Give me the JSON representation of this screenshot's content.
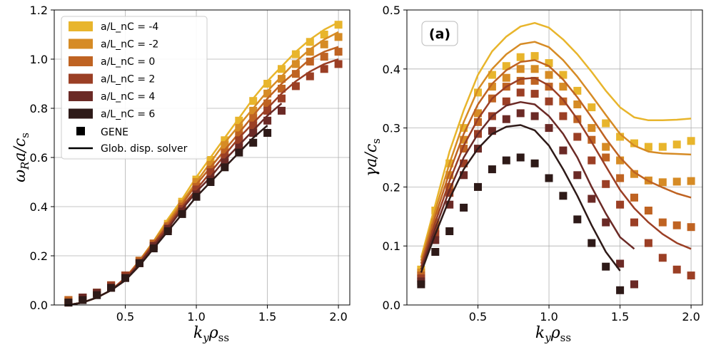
{
  "colors": [
    "#e8b52c",
    "#d68b25",
    "#bf6322",
    "#9b3f25",
    "#6b2a26",
    "#2e1a18"
  ],
  "chart_data": [
    {
      "type": "line",
      "title": "",
      "xlabel": "k_y ρ_ss",
      "ylabel": "ω_R a / c_s",
      "xlim": [
        0.0,
        2.08
      ],
      "ylim": [
        0.0,
        1.2
      ],
      "xticks": [
        "0.5",
        "1.0",
        "1.5",
        "2.0"
      ],
      "yticks": [
        "0.0",
        "0.2",
        "0.4",
        "0.6",
        "0.8",
        "1.0",
        "1.2"
      ],
      "grid": true,
      "legend_position": "top-left",
      "legend": {
        "series": [
          "a/L_nC = -4",
          "a/L_nC = -2",
          "a/L_nC = 0",
          "a/L_nC = 2",
          "a/L_nC = 4",
          "a/L_nC = 6"
        ],
        "gene": "GENE",
        "solver": "Glob. disp. solver"
      },
      "series": [
        {
          "name": "a/L_nC = -4",
          "line_x": [
            0.1,
            0.2,
            0.3,
            0.4,
            0.5,
            0.6,
            0.7,
            0.8,
            0.9,
            1.0,
            1.1,
            1.2,
            1.3,
            1.4,
            1.5,
            1.6,
            1.7,
            1.8,
            1.9,
            2.0
          ],
          "line_y": [
            0.0,
            0.01,
            0.03,
            0.06,
            0.11,
            0.18,
            0.26,
            0.35,
            0.43,
            0.52,
            0.6,
            0.68,
            0.76,
            0.84,
            0.91,
            0.97,
            1.03,
            1.08,
            1.12,
            1.15
          ],
          "gene_x": [
            0.1,
            0.2,
            0.3,
            0.4,
            0.5,
            0.6,
            0.7,
            0.8,
            0.9,
            1.0,
            1.1,
            1.2,
            1.3,
            1.4,
            1.5,
            1.6,
            1.7,
            1.8,
            1.9,
            2.0
          ],
          "gene_y": [
            0.02,
            0.03,
            0.05,
            0.08,
            0.12,
            0.18,
            0.25,
            0.33,
            0.42,
            0.51,
            0.59,
            0.67,
            0.75,
            0.83,
            0.9,
            0.96,
            1.02,
            1.07,
            1.1,
            1.14
          ]
        },
        {
          "name": "a/L_nC = -2",
          "line_x": [
            0.1,
            0.2,
            0.3,
            0.4,
            0.5,
            0.6,
            0.7,
            0.8,
            0.9,
            1.0,
            1.1,
            1.2,
            1.3,
            1.4,
            1.5,
            1.6,
            1.7,
            1.8,
            1.9,
            2.0
          ],
          "line_y": [
            0.0,
            0.01,
            0.03,
            0.06,
            0.11,
            0.18,
            0.26,
            0.34,
            0.42,
            0.5,
            0.58,
            0.66,
            0.73,
            0.8,
            0.87,
            0.93,
            0.99,
            1.04,
            1.08,
            1.11
          ],
          "gene_x": [
            0.1,
            0.2,
            0.3,
            0.4,
            0.5,
            0.6,
            0.7,
            0.8,
            0.9,
            1.0,
            1.1,
            1.2,
            1.3,
            1.4,
            1.5,
            1.6,
            1.7,
            1.8,
            1.9,
            2.0
          ],
          "gene_y": [
            0.02,
            0.03,
            0.05,
            0.08,
            0.12,
            0.18,
            0.25,
            0.32,
            0.41,
            0.5,
            0.57,
            0.65,
            0.72,
            0.79,
            0.86,
            0.92,
            0.98,
            1.03,
            1.06,
            1.09
          ]
        },
        {
          "name": "a/L_nC = 0",
          "line_x": [
            0.1,
            0.2,
            0.3,
            0.4,
            0.5,
            0.6,
            0.7,
            0.8,
            0.9,
            1.0,
            1.1,
            1.2,
            1.3,
            1.4,
            1.5,
            1.6,
            1.7,
            1.8,
            1.9,
            2.0
          ],
          "line_y": [
            0.0,
            0.01,
            0.03,
            0.06,
            0.11,
            0.18,
            0.25,
            0.33,
            0.41,
            0.49,
            0.56,
            0.63,
            0.7,
            0.77,
            0.84,
            0.9,
            0.95,
            1.0,
            1.03,
            1.05
          ],
          "gene_x": [
            0.1,
            0.2,
            0.3,
            0.4,
            0.5,
            0.6,
            0.7,
            0.8,
            0.9,
            1.0,
            1.1,
            1.2,
            1.3,
            1.4,
            1.5,
            1.6,
            1.7,
            1.8,
            1.9,
            2.0
          ],
          "gene_y": [
            0.02,
            0.03,
            0.05,
            0.08,
            0.12,
            0.18,
            0.25,
            0.32,
            0.4,
            0.48,
            0.55,
            0.62,
            0.69,
            0.76,
            0.82,
            0.88,
            0.94,
            0.99,
            1.01,
            1.03
          ]
        },
        {
          "name": "a/L_nC = 2",
          "line_x": [
            0.1,
            0.2,
            0.3,
            0.4,
            0.5,
            0.6,
            0.7,
            0.8,
            0.9,
            1.0,
            1.1,
            1.2,
            1.3,
            1.4,
            1.5,
            1.6,
            1.7,
            1.8,
            1.9,
            2.0
          ],
          "line_y": [
            0.0,
            0.01,
            0.03,
            0.06,
            0.11,
            0.17,
            0.25,
            0.32,
            0.4,
            0.47,
            0.54,
            0.61,
            0.68,
            0.74,
            0.8,
            0.86,
            0.91,
            0.95,
            0.98,
            1.0
          ],
          "gene_x": [
            0.1,
            0.2,
            0.3,
            0.4,
            0.5,
            0.6,
            0.7,
            0.8,
            0.9,
            1.0,
            1.1,
            1.2,
            1.3,
            1.4,
            1.5,
            1.6,
            1.7,
            1.8,
            1.9,
            2.0
          ],
          "gene_y": [
            0.01,
            0.03,
            0.05,
            0.08,
            0.12,
            0.17,
            0.24,
            0.31,
            0.39,
            0.47,
            0.54,
            0.6,
            0.67,
            0.73,
            0.79,
            0.84,
            0.89,
            0.93,
            0.96,
            0.98
          ]
        },
        {
          "name": "a/L_nC = 4",
          "line_x": [
            0.1,
            0.2,
            0.3,
            0.4,
            0.5,
            0.6,
            0.7,
            0.8,
            0.9,
            1.0,
            1.1,
            1.2,
            1.3,
            1.4,
            1.5,
            1.6
          ],
          "line_y": [
            0.0,
            0.01,
            0.03,
            0.06,
            0.1,
            0.17,
            0.24,
            0.31,
            0.39,
            0.46,
            0.52,
            0.59,
            0.65,
            0.71,
            0.77,
            0.82
          ],
          "gene_x": [
            0.1,
            0.2,
            0.3,
            0.4,
            0.5,
            0.6,
            0.7,
            0.8,
            0.9,
            1.0,
            1.1,
            1.2,
            1.3,
            1.4,
            1.5,
            1.6
          ],
          "gene_y": [
            0.01,
            0.03,
            0.05,
            0.07,
            0.11,
            0.17,
            0.24,
            0.31,
            0.38,
            0.45,
            0.51,
            0.58,
            0.64,
            0.7,
            0.75,
            0.79
          ]
        },
        {
          "name": "a/L_nC = 6",
          "line_x": [
            0.1,
            0.2,
            0.3,
            0.4,
            0.5,
            0.6,
            0.7,
            0.8,
            0.9,
            1.0,
            1.1,
            1.2,
            1.3,
            1.4,
            1.5
          ],
          "line_y": [
            0.0,
            0.01,
            0.03,
            0.06,
            0.1,
            0.16,
            0.23,
            0.3,
            0.37,
            0.44,
            0.5,
            0.56,
            0.62,
            0.68,
            0.73
          ],
          "gene_x": [
            0.1,
            0.2,
            0.3,
            0.4,
            0.5,
            0.6,
            0.7,
            0.8,
            0.9,
            1.0,
            1.1,
            1.2,
            1.3,
            1.4,
            1.5
          ],
          "gene_y": [
            0.01,
            0.02,
            0.04,
            0.07,
            0.11,
            0.17,
            0.23,
            0.3,
            0.37,
            0.44,
            0.5,
            0.56,
            0.62,
            0.66,
            0.7
          ]
        }
      ]
    },
    {
      "type": "line",
      "title": "",
      "annotation": "(a)",
      "xlabel": "k_y ρ_ss",
      "ylabel": "γ a / c_s",
      "xlim": [
        0.0,
        2.08
      ],
      "ylim": [
        0.0,
        0.5
      ],
      "xticks": [
        "0.5",
        "1.0",
        "1.5",
        "2.0"
      ],
      "yticks": [
        "0.0",
        "0.1",
        "0.2",
        "0.3",
        "0.4",
        "0.5"
      ],
      "grid": true,
      "series": [
        {
          "name": "a/L_nC = -4",
          "line_x": [
            0.1,
            0.2,
            0.3,
            0.4,
            0.5,
            0.6,
            0.7,
            0.8,
            0.9,
            1.0,
            1.1,
            1.2,
            1.3,
            1.4,
            1.5,
            1.6,
            1.7,
            1.8,
            1.9,
            2.0
          ],
          "line_y": [
            0.08,
            0.17,
            0.26,
            0.33,
            0.39,
            0.43,
            0.455,
            0.472,
            0.478,
            0.47,
            0.45,
            0.425,
            0.395,
            0.363,
            0.335,
            0.318,
            0.313,
            0.313,
            0.314,
            0.316
          ],
          "gene_x": [
            0.1,
            0.2,
            0.3,
            0.4,
            0.5,
            0.6,
            0.7,
            0.8,
            0.9,
            1.0,
            1.1,
            1.2,
            1.3,
            1.4,
            1.5,
            1.6,
            1.7,
            1.8,
            1.9,
            2.0
          ],
          "gene_y": [
            0.06,
            0.16,
            0.24,
            0.3,
            0.36,
            0.39,
            0.405,
            0.42,
            0.422,
            0.41,
            0.39,
            0.363,
            0.335,
            0.308,
            0.285,
            0.274,
            0.268,
            0.268,
            0.272,
            0.278
          ]
        },
        {
          "name": "a/L_nC = -2",
          "line_x": [
            0.1,
            0.2,
            0.3,
            0.4,
            0.5,
            0.6,
            0.7,
            0.8,
            0.9,
            1.0,
            1.1,
            1.2,
            1.3,
            1.4,
            1.5,
            1.6,
            1.7,
            1.8,
            1.9,
            2.0
          ],
          "line_y": [
            0.075,
            0.16,
            0.24,
            0.31,
            0.365,
            0.4,
            0.425,
            0.442,
            0.446,
            0.437,
            0.415,
            0.387,
            0.355,
            0.322,
            0.29,
            0.27,
            0.26,
            0.257,
            0.256,
            0.255
          ],
          "gene_x": [
            0.1,
            0.2,
            0.3,
            0.4,
            0.5,
            0.6,
            0.7,
            0.8,
            0.9,
            1.0,
            1.1,
            1.2,
            1.3,
            1.4,
            1.5,
            1.6,
            1.7,
            1.8,
            1.9,
            2.0
          ],
          "gene_y": [
            0.055,
            0.14,
            0.22,
            0.28,
            0.325,
            0.37,
            0.385,
            0.4,
            0.4,
            0.39,
            0.37,
            0.34,
            0.3,
            0.268,
            0.245,
            0.222,
            0.211,
            0.208,
            0.209,
            0.21
          ]
        },
        {
          "name": "a/L_nC = 0",
          "line_x": [
            0.1,
            0.2,
            0.3,
            0.4,
            0.5,
            0.6,
            0.7,
            0.8,
            0.9,
            1.0,
            1.1,
            1.2,
            1.3,
            1.4,
            1.5,
            1.6,
            1.7,
            1.8,
            1.9,
            2.0
          ],
          "line_y": [
            0.07,
            0.15,
            0.225,
            0.29,
            0.34,
            0.375,
            0.398,
            0.412,
            0.415,
            0.405,
            0.382,
            0.352,
            0.318,
            0.282,
            0.25,
            0.225,
            0.21,
            0.199,
            0.189,
            0.182
          ],
          "gene_x": [
            0.1,
            0.2,
            0.3,
            0.4,
            0.5,
            0.6,
            0.7,
            0.8,
            0.9,
            1.0,
            1.1,
            1.2,
            1.3,
            1.4,
            1.5,
            1.6,
            1.7,
            1.8,
            1.9,
            2.0
          ],
          "gene_y": [
            0.05,
            0.13,
            0.2,
            0.265,
            0.31,
            0.35,
            0.37,
            0.38,
            0.38,
            0.37,
            0.345,
            0.315,
            0.28,
            0.25,
            0.215,
            0.182,
            0.16,
            0.14,
            0.135,
            0.132
          ]
        },
        {
          "name": "a/L_nC = 2",
          "line_x": [
            0.1,
            0.2,
            0.3,
            0.4,
            0.5,
            0.6,
            0.7,
            0.8,
            0.9,
            1.0,
            1.1,
            1.2,
            1.3,
            1.4,
            1.5,
            1.6,
            1.7,
            1.8,
            1.9,
            2.0
          ],
          "line_y": [
            0.065,
            0.14,
            0.21,
            0.27,
            0.315,
            0.35,
            0.37,
            0.383,
            0.385,
            0.372,
            0.348,
            0.315,
            0.276,
            0.235,
            0.195,
            0.164,
            0.14,
            0.12,
            0.105,
            0.095
          ],
          "gene_x": [
            0.1,
            0.2,
            0.3,
            0.4,
            0.5,
            0.6,
            0.7,
            0.8,
            0.9,
            1.0,
            1.1,
            1.2,
            1.3,
            1.4,
            1.5,
            1.6,
            1.7,
            1.8,
            1.9,
            2.0
          ],
          "gene_y": [
            0.045,
            0.12,
            0.19,
            0.24,
            0.29,
            0.32,
            0.345,
            0.36,
            0.358,
            0.345,
            0.32,
            0.285,
            0.245,
            0.205,
            0.17,
            0.14,
            0.105,
            0.08,
            0.06,
            0.05
          ]
        },
        {
          "name": "a/L_nC = 4",
          "line_x": [
            0.1,
            0.2,
            0.3,
            0.4,
            0.5,
            0.6,
            0.7,
            0.8,
            0.9,
            1.0,
            1.1,
            1.2,
            1.3,
            1.4,
            1.5,
            1.6
          ],
          "line_y": [
            0.06,
            0.13,
            0.195,
            0.25,
            0.29,
            0.32,
            0.338,
            0.344,
            0.34,
            0.32,
            0.29,
            0.25,
            0.2,
            0.155,
            0.115,
            0.095
          ],
          "gene_x": [
            0.1,
            0.2,
            0.3,
            0.4,
            0.5,
            0.6,
            0.7,
            0.8,
            0.9,
            1.0,
            1.1,
            1.2,
            1.3,
            1.4,
            1.5,
            1.6
          ],
          "gene_y": [
            0.04,
            0.11,
            0.17,
            0.22,
            0.265,
            0.295,
            0.315,
            0.325,
            0.32,
            0.3,
            0.262,
            0.22,
            0.18,
            0.14,
            0.07,
            0.035
          ]
        },
        {
          "name": "a/L_nC = 6",
          "line_x": [
            0.1,
            0.2,
            0.3,
            0.4,
            0.5,
            0.6,
            0.7,
            0.8,
            0.9,
            1.0,
            1.1,
            1.2,
            1.3,
            1.4,
            1.5
          ],
          "line_y": [
            0.055,
            0.12,
            0.18,
            0.23,
            0.265,
            0.29,
            0.302,
            0.305,
            0.296,
            0.27,
            0.23,
            0.185,
            0.135,
            0.09,
            0.058
          ],
          "gene_x": [
            0.1,
            0.2,
            0.3,
            0.4,
            0.5,
            0.6,
            0.7,
            0.8,
            0.9,
            1.0,
            1.1,
            1.2,
            1.3,
            1.4,
            1.5
          ],
          "gene_y": [
            0.035,
            0.09,
            0.125,
            0.165,
            0.2,
            0.23,
            0.245,
            0.25,
            0.24,
            0.215,
            0.185,
            0.145,
            0.105,
            0.065,
            0.025
          ]
        }
      ]
    }
  ]
}
